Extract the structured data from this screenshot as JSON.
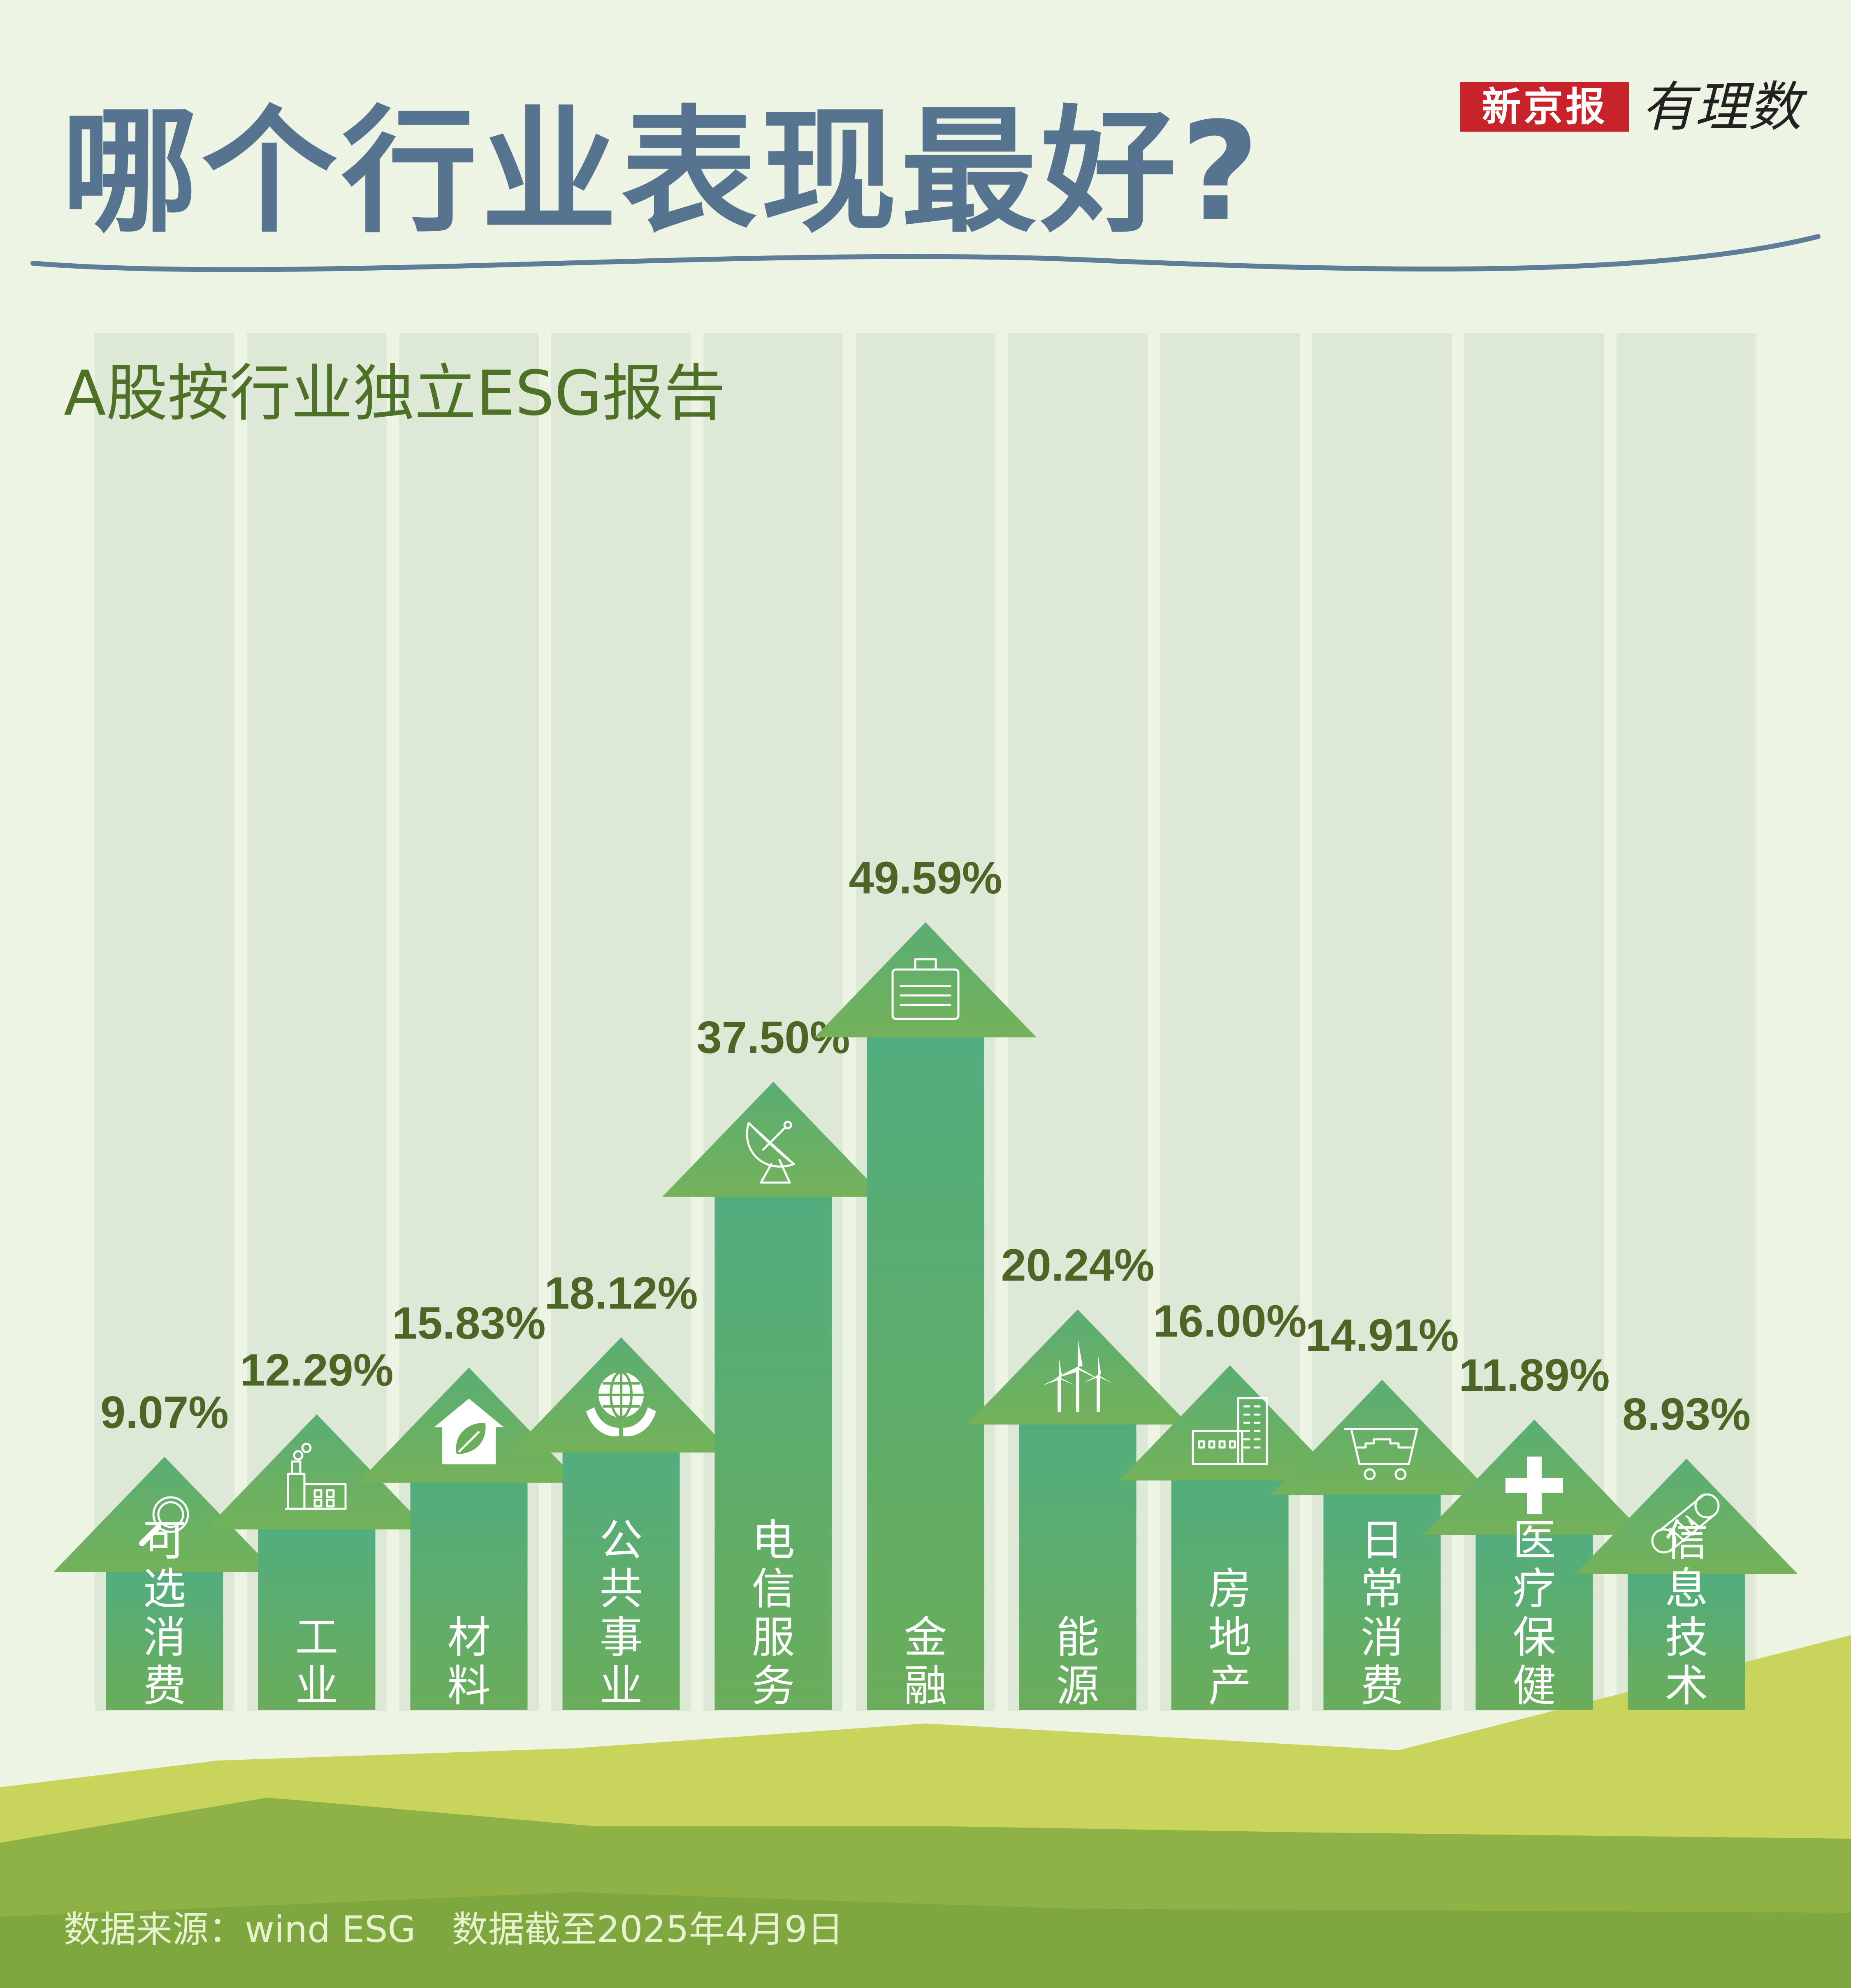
{
  "title": "哪个行业表现最好?",
  "logo": {
    "brand": "新京报",
    "sub": "有理数"
  },
  "chart_data": {
    "type": "bar",
    "title": "A股按行业独立ESG报告",
    "categories": [
      "可选消费",
      "工业",
      "材料",
      "公共事业",
      "电信服务",
      "金融",
      "能源",
      "房地产",
      "日常消费",
      "医疗保健",
      "信息技术"
    ],
    "values": [
      9.07,
      12.29,
      15.83,
      18.12,
      37.5,
      49.59,
      20.24,
      16.0,
      14.91,
      11.89,
      8.93
    ],
    "value_labels": [
      "9.07%",
      "12.29%",
      "15.83%",
      "18.12%",
      "37.50%",
      "49.59%",
      "20.24%",
      "16.00%",
      "14.91%",
      "11.89%",
      "8.93%"
    ],
    "icons": [
      "magnifier-icon",
      "factory-icon",
      "house-leaf-icon",
      "globe-hands-icon",
      "satellite-dish-icon",
      "briefcase-icon",
      "wind-turbine-icon",
      "buildings-icon",
      "cart-icon",
      "medical-cross-icon",
      "chip-icon"
    ],
    "unit": "%",
    "ylim": [
      0,
      55
    ],
    "colors": {
      "bar_top": "#52ad7e",
      "bar_bottom": "#6aad5b",
      "arrow_top": "#5aad74",
      "arrow_bottom": "#74b25a",
      "label": "#4d6625",
      "column_bg": "#dde9d6"
    }
  },
  "footer": "数据来源：wind ESG　数据截至2025年4月9日"
}
